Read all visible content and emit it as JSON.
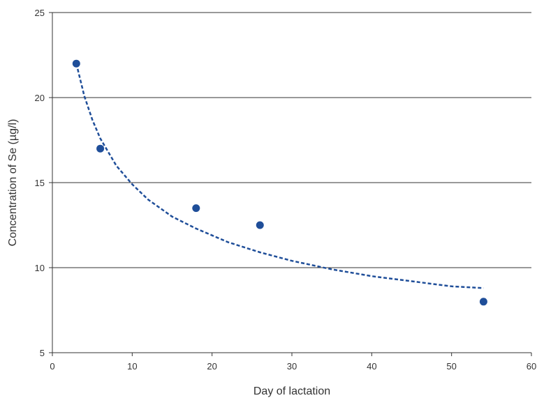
{
  "chart_data": {
    "type": "scatter",
    "xlabel": "Day of lactation",
    "ylabel": "Concentration of Se (µg/l)",
    "xlim": [
      0,
      60
    ],
    "ylim": [
      5,
      25
    ],
    "x_ticks": [
      0,
      10,
      20,
      30,
      40,
      50,
      60
    ],
    "y_ticks": [
      5,
      10,
      15,
      20,
      25
    ],
    "grid": "horizontal",
    "legend": "none",
    "series": [
      {
        "x": [
          3,
          6,
          18,
          26,
          54
        ],
        "y": [
          22,
          17,
          13.5,
          12.5,
          8
        ],
        "color": "#1f4e99"
      }
    ],
    "trendline": {
      "style": "dashed",
      "color": "#1f4e99",
      "x": [
        3,
        4,
        5,
        6,
        8,
        10,
        12,
        15,
        18,
        22,
        26,
        30,
        35,
        40,
        45,
        50,
        54
      ],
      "y": [
        22,
        20.1,
        18.7,
        17.6,
        16.0,
        14.9,
        14.0,
        13.0,
        12.3,
        11.5,
        10.9,
        10.4,
        9.9,
        9.5,
        9.2,
        8.9,
        8.8
      ]
    }
  }
}
